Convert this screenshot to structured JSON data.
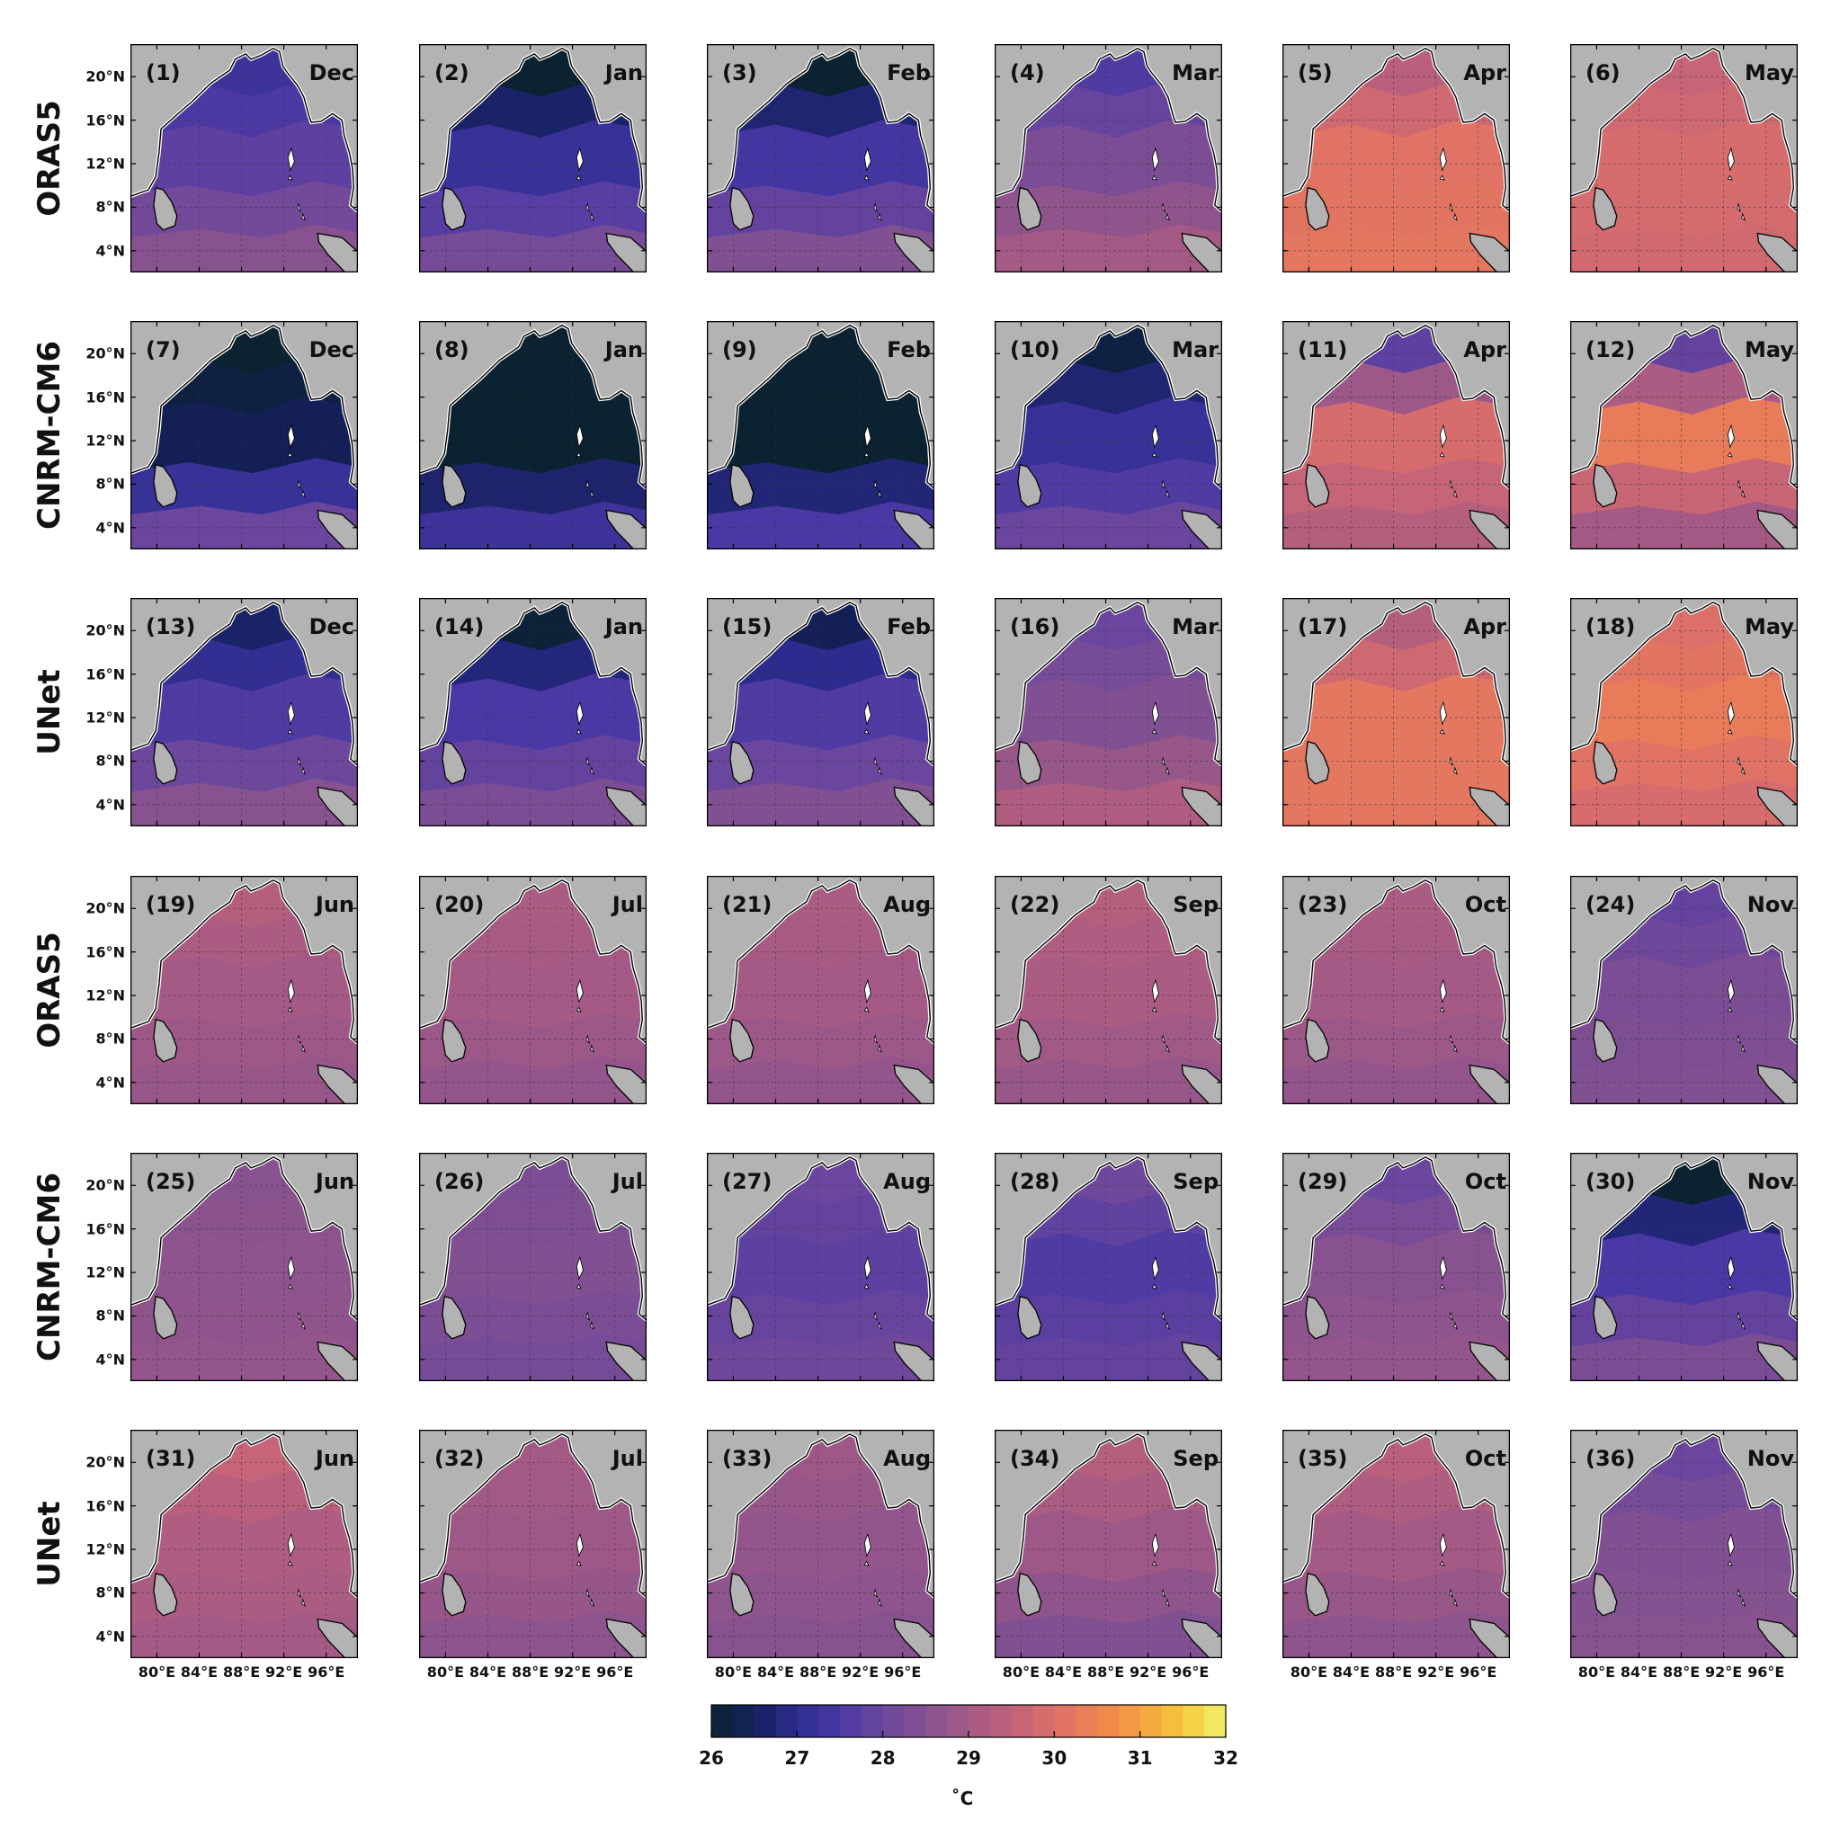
{
  "row_labels": [
    "ORAS5",
    "CNRM-CM6",
    "UNet",
    "ORAS5",
    "CNRM-CM6",
    "UNet"
  ],
  "lat_labels": [
    "20°N",
    "16°N",
    "12°N",
    "8°N",
    "4°N"
  ],
  "lon_labels": [
    "80°E",
    "84°E",
    "88°E",
    "92°E",
    "96°E"
  ],
  "colorbar": {
    "ticks": [
      "26",
      "27",
      "28",
      "29",
      "30",
      "31",
      "32"
    ],
    "unit": "˚C",
    "min": 26,
    "max": 32,
    "colors": [
      "#0b2230",
      "#16205e",
      "#2c2c8e",
      "#4a38a4",
      "#6a469e",
      "#87528f",
      "#a45a85",
      "#c0627a",
      "#dc6f6a",
      "#ee8350",
      "#f6a03e",
      "#f7c83d",
      "#eff26a"
    ]
  },
  "panels": [
    {
      "num": "(1)",
      "month": "Dec",
      "sst": [
        27.3,
        27.8,
        28.5
      ]
    },
    {
      "num": "(2)",
      "month": "Jan",
      "sst": [
        26.0,
        27.2,
        28.2
      ]
    },
    {
      "num": "(3)",
      "month": "Feb",
      "sst": [
        26.0,
        27.4,
        28.4
      ]
    },
    {
      "num": "(4)",
      "month": "Mar",
      "sst": [
        27.6,
        28.3,
        29.0
      ]
    },
    {
      "num": "(5)",
      "month": "Apr",
      "sst": [
        29.4,
        30.1,
        30.2
      ]
    },
    {
      "num": "(6)",
      "month": "May",
      "sst": [
        29.6,
        29.9,
        29.8
      ]
    },
    {
      "num": "(7)",
      "month": "Dec",
      "sst": [
        26.0,
        26.4,
        28.0
      ]
    },
    {
      "num": "(8)",
      "month": "Jan",
      "sst": [
        26.0,
        26.0,
        27.3
      ]
    },
    {
      "num": "(9)",
      "month": "Feb",
      "sst": [
        26.0,
        26.0,
        27.5
      ]
    },
    {
      "num": "(10)",
      "month": "Mar",
      "sst": [
        26.2,
        27.2,
        28.0
      ]
    },
    {
      "num": "(11)",
      "month": "Apr",
      "sst": [
        27.8,
        29.9,
        29.3
      ]
    },
    {
      "num": "(12)",
      "month": "May",
      "sst": [
        27.9,
        30.3,
        29.0
      ]
    },
    {
      "num": "(13)",
      "month": "Dec",
      "sst": [
        26.6,
        27.6,
        28.5
      ]
    },
    {
      "num": "(14)",
      "month": "Jan",
      "sst": [
        26.1,
        27.5,
        28.3
      ]
    },
    {
      "num": "(15)",
      "month": "Feb",
      "sst": [
        26.4,
        27.6,
        28.4
      ]
    },
    {
      "num": "(16)",
      "month": "Mar",
      "sst": [
        28.0,
        28.4,
        29.2
      ]
    },
    {
      "num": "(17)",
      "month": "Apr",
      "sst": [
        29.3,
        30.2,
        30.2
      ]
    },
    {
      "num": "(18)",
      "month": "May",
      "sst": [
        30.0,
        30.3,
        29.9
      ]
    },
    {
      "num": "(19)",
      "month": "Jun",
      "sst": [
        29.3,
        29.0,
        28.8
      ]
    },
    {
      "num": "(20)",
      "month": "Jul",
      "sst": [
        29.1,
        29.0,
        28.7
      ]
    },
    {
      "num": "(21)",
      "month": "Aug",
      "sst": [
        29.1,
        29.0,
        28.7
      ]
    },
    {
      "num": "(22)",
      "month": "Sep",
      "sst": [
        29.3,
        29.1,
        28.8
      ]
    },
    {
      "num": "(23)",
      "month": "Oct",
      "sst": [
        29.1,
        29.0,
        28.7
      ]
    },
    {
      "num": "(24)",
      "month": "Nov",
      "sst": [
        27.9,
        28.3,
        28.4
      ]
    },
    {
      "num": "(25)",
      "month": "Jun",
      "sst": [
        28.5,
        28.6,
        28.7
      ]
    },
    {
      "num": "(26)",
      "month": "Jul",
      "sst": [
        28.3,
        28.4,
        28.2
      ]
    },
    {
      "num": "(27)",
      "month": "Aug",
      "sst": [
        28.0,
        27.8,
        28.1
      ]
    },
    {
      "num": "(28)",
      "month": "Sep",
      "sst": [
        28.1,
        27.6,
        27.9
      ]
    },
    {
      "num": "(29)",
      "month": "Oct",
      "sst": [
        28.0,
        28.5,
        28.7
      ]
    },
    {
      "num": "(30)",
      "month": "Nov",
      "sst": [
        26.0,
        27.5,
        28.3
      ]
    },
    {
      "num": "(31)",
      "month": "Jun",
      "sst": [
        29.6,
        29.2,
        29.0
      ]
    },
    {
      "num": "(32)",
      "month": "Jul",
      "sst": [
        29.0,
        28.9,
        28.6
      ]
    },
    {
      "num": "(33)",
      "month": "Aug",
      "sst": [
        28.9,
        28.7,
        28.5
      ]
    },
    {
      "num": "(34)",
      "month": "Sep",
      "sst": [
        29.3,
        28.9,
        28.4
      ]
    },
    {
      "num": "(35)",
      "month": "Oct",
      "sst": [
        29.4,
        29.0,
        28.6
      ]
    },
    {
      "num": "(36)",
      "month": "Nov",
      "sst": [
        28.0,
        28.4,
        28.5
      ]
    }
  ]
}
